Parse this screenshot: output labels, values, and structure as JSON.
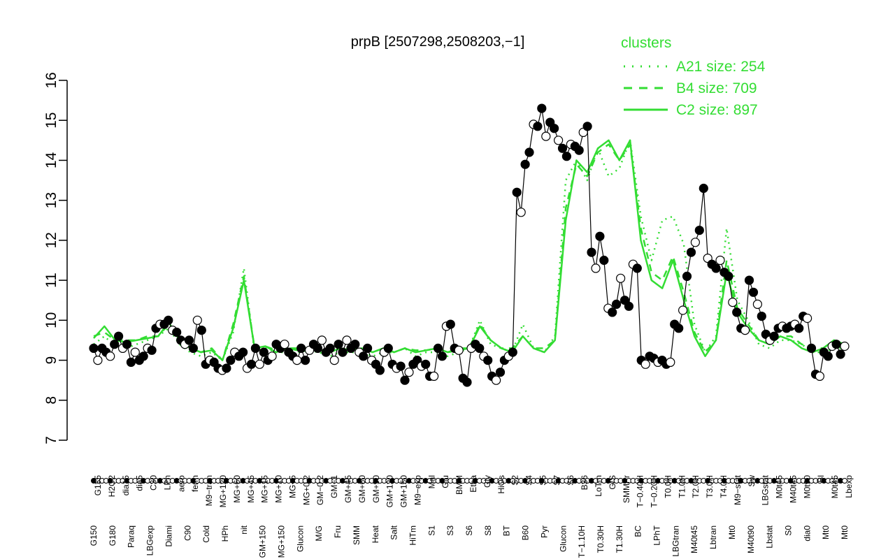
{
  "chart_data": {
    "type": "line",
    "title": "prpB [2507298,2508203,−1]",
    "xlabel": "",
    "ylabel": "",
    "ylim": [
      7,
      16
    ],
    "yticks": [
      7,
      8,
      9,
      10,
      11,
      12,
      13,
      14,
      15,
      16
    ],
    "grid": false,
    "legend": {
      "title": "clusters",
      "position": "top-right",
      "color": "#33dd33",
      "entries": [
        {
          "label": "A21 size: 254",
          "style": "dotted"
        },
        {
          "label": "B4 size: 709",
          "style": "dashed"
        },
        {
          "label": "C2 size: 897",
          "style": "solid"
        }
      ]
    },
    "tick_labels_upper": [
      "G135",
      "H2O2",
      "dia15",
      "dia5",
      "C30",
      "LPh",
      "aero",
      "ferm",
      "M9−tran",
      "MG+120",
      "MG+60",
      "MG+45",
      "MG+15",
      "MG+10",
      "MG+5",
      "MG+0.2",
      "GM−0.2",
      "GM−1",
      "GM+45",
      "GM+60",
      "GM+90",
      "GM+120",
      "GM+150",
      "M9−exp",
      "Mal",
      "Glu",
      "BMM",
      "Etha",
      "Gly",
      "HiOs",
      "S2",
      "S4",
      "S5",
      "S7",
      "S6",
      "B36",
      "LoTm",
      "G/S",
      "SMMPr",
      "T−0.40H",
      "T−0.20H",
      "T0.0H",
      "T1.0H",
      "T2.0H",
      "T3.0H",
      "T4.0H",
      "M9−stat",
      "Sw",
      "LBGstat",
      "M0t45",
      "M40t45",
      "M0t90",
      "Bl",
      "M0t45",
      "Lbexp"
    ],
    "tick_labels_lower": [
      "G150",
      "G180",
      "Paraq",
      "LBGexp",
      "Diami",
      "C90",
      "Cold",
      "HPh",
      "nit",
      "GM+150",
      "MG+150",
      "Glucon",
      "M/G",
      "Fru",
      "SMM",
      "Heat",
      "Salt",
      "HiTm",
      "S1",
      "S3",
      "S6",
      "S8",
      "BT",
      "B60",
      "Pyr",
      "Glucon",
      "T−1.10H",
      "T0.30H",
      "T1.30H",
      "BC",
      "LPhT",
      "LBGtran",
      "M40t45",
      "Lbtran",
      "Mt0",
      "M40t90",
      "Lbstat",
      "S0",
      "dia0",
      "Mt0",
      "Mt0"
    ],
    "series": [
      {
        "name": "",
        "values": [
          9.3,
          9.0,
          9.3,
          9.2,
          9.1,
          9.4,
          9.6,
          9.3,
          9.4,
          8.95,
          9.2,
          9.0,
          9.1,
          9.3,
          9.25,
          9.8,
          9.9,
          9.9,
          10.0,
          9.75,
          9.7,
          9.5,
          9.4,
          9.5,
          9.3,
          10.0,
          9.75,
          8.9,
          9.0,
          8.95,
          8.8,
          8.75,
          8.8,
          9.0,
          9.2,
          9.1,
          9.2,
          8.8,
          8.9,
          9.3,
          8.9,
          9.2,
          9.0,
          9.1,
          9.4,
          9.3,
          9.4,
          9.2,
          9.1,
          9.0,
          9.3,
          9.0,
          9.25,
          9.4,
          9.3,
          9.5,
          9.2,
          9.3,
          9.0,
          9.4,
          9.2,
          9.5,
          9.3,
          9.4,
          9.2,
          9.1,
          9.3,
          9.0,
          8.9,
          8.75,
          9.2,
          9.3,
          8.9,
          8.8,
          8.85,
          8.5,
          8.7,
          8.9,
          9.0,
          8.85,
          8.9,
          8.6,
          8.6,
          9.3,
          9.1,
          9.85,
          9.9,
          9.3,
          9.25,
          8.55,
          8.45,
          9.3,
          9.4,
          9.3,
          9.1,
          9.0,
          8.6,
          8.5,
          8.7,
          9.0,
          9.1,
          9.2,
          13.2,
          12.7,
          13.9,
          14.2,
          14.9,
          14.85,
          15.3,
          14.6,
          14.95,
          14.8,
          14.5,
          14.3,
          14.1,
          14.4,
          14.35,
          14.25,
          14.7,
          14.85,
          11.7,
          11.3,
          12.1,
          11.5,
          10.3,
          10.2,
          10.4,
          11.05,
          10.5,
          10.35,
          11.4,
          11.3,
          9.0,
          8.9,
          9.1,
          9.05,
          8.95,
          9.0,
          8.9,
          8.95,
          9.9,
          9.8,
          10.25,
          11.1,
          11.7,
          11.95,
          12.25,
          13.3,
          11.55,
          11.4,
          11.3,
          11.5,
          11.2,
          11.1,
          10.45,
          10.2,
          9.8,
          9.75,
          11.0,
          10.7,
          10.4,
          10.1,
          9.65,
          9.5,
          9.6,
          9.8,
          9.85,
          9.8,
          9.85,
          9.9,
          9.8,
          10.1,
          10.05,
          9.3,
          8.65,
          8.6,
          9.2,
          9.1,
          9.35,
          9.4,
          9.15,
          9.35
        ]
      },
      {
        "name": "C2 size: 897",
        "style": "solid",
        "values": [
          9.55,
          9.85,
          9.5,
          9.45,
          9.5,
          9.55,
          9.6,
          9.95,
          9.5,
          9.3,
          9.2,
          9.25,
          9.0,
          9.8,
          11.0,
          9.3,
          9.35,
          9.2,
          9.3,
          9.25,
          9.3,
          9.25,
          9.2,
          9.3,
          9.25,
          9.3,
          9.2,
          9.3,
          9.2,
          9.3,
          9.2,
          9.25,
          9.3,
          9.2,
          9.25,
          9.3,
          9.85,
          9.5,
          9.3,
          9.2,
          9.6,
          9.3,
          9.2,
          9.5,
          12.5,
          14.0,
          13.7,
          14.3,
          14.5,
          14.0,
          14.5,
          12.0,
          11.0,
          10.8,
          11.5,
          10.5,
          9.6,
          9.1,
          9.5,
          11.2,
          10.2,
          9.8,
          9.5,
          9.4,
          9.6,
          9.5,
          9.3,
          9.2,
          9.3,
          9.5,
          9.4
        ]
      },
      {
        "name": "B4 size: 709",
        "style": "dashed",
        "values": [
          9.6,
          9.7,
          9.5,
          9.5,
          9.5,
          9.6,
          9.6,
          9.9,
          9.5,
          9.3,
          9.2,
          9.3,
          9.0,
          9.9,
          11.1,
          9.3,
          9.35,
          9.25,
          9.3,
          9.3,
          9.3,
          9.25,
          9.2,
          9.3,
          9.25,
          9.3,
          9.2,
          9.3,
          9.2,
          9.3,
          9.25,
          9.25,
          9.3,
          9.2,
          9.3,
          9.3,
          9.9,
          9.5,
          9.3,
          9.3,
          9.6,
          9.3,
          9.3,
          9.5,
          12.8,
          13.9,
          13.6,
          14.2,
          14.4,
          14.0,
          14.4,
          12.3,
          11.2,
          11.0,
          11.6,
          10.7,
          9.7,
          9.2,
          9.5,
          11.5,
          10.3,
          9.9,
          9.5,
          9.4,
          9.6,
          9.6,
          9.4,
          9.3,
          9.3,
          9.5,
          9.4
        ]
      },
      {
        "name": "A21 size: 254",
        "style": "dotted",
        "values": [
          9.4,
          9.6,
          9.35,
          9.3,
          9.4,
          9.5,
          9.6,
          9.8,
          9.4,
          9.2,
          9.1,
          9.2,
          9.0,
          9.7,
          11.3,
          9.2,
          9.3,
          9.2,
          9.2,
          9.2,
          9.25,
          9.2,
          9.1,
          9.2,
          9.2,
          9.2,
          9.1,
          9.2,
          9.2,
          9.3,
          9.1,
          9.2,
          9.2,
          9.1,
          9.2,
          9.3,
          10.0,
          9.4,
          9.3,
          9.2,
          9.9,
          9.3,
          9.2,
          9.6,
          13.5,
          14.0,
          13.5,
          14.3,
          13.6,
          13.8,
          14.5,
          12.6,
          11.5,
          12.5,
          12.6,
          11.9,
          9.9,
          9.2,
          9.6,
          12.3,
          10.5,
          10.0,
          9.4,
          9.3,
          9.5,
          9.5,
          9.4,
          9.2,
          9.2,
          9.3,
          9.3
        ]
      }
    ]
  }
}
